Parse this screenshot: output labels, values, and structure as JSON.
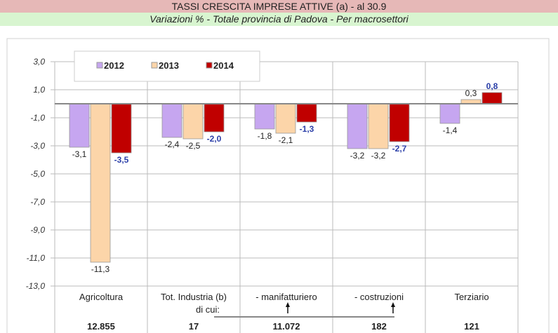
{
  "header": {
    "title": "TASSI CRESCITA IMPRESE ATTIVE (a) - al 30.9",
    "subtitle": "Variazioni % -  Totale provincia di Padova - Per macrosettori"
  },
  "chart_data": {
    "type": "bar",
    "categories": [
      "Agricoltura",
      "Tot. Industria (b)\ndi cui:",
      "- manifatturiero",
      "- costruzioni",
      "Terziario"
    ],
    "category_values": [
      "12.855",
      "17",
      "11.072",
      "182",
      "121"
    ],
    "series": [
      {
        "name": "2012",
        "color": "#c6a6f0",
        "values": [
          -3.1,
          -2.4,
          -1.8,
          -3.2,
          -1.4
        ]
      },
      {
        "name": "2013",
        "color": "#fcd5a9",
        "values": [
          -11.3,
          -2.5,
          -2.1,
          -3.2,
          0.3
        ]
      },
      {
        "name": "2014",
        "color": "#c00000",
        "values": [
          -3.5,
          -2.0,
          -1.3,
          -2.7,
          0.8
        ]
      }
    ],
    "yticks": [
      "3,0",
      "1,0",
      "-1,0",
      "-3,0",
      "-5,0",
      "-7,0",
      "-9,0",
      "-11,0",
      "-13,0"
    ],
    "ylim": [
      -13,
      3
    ],
    "legend": "top-left",
    "highlight_label_color": "#2a3ea8"
  }
}
